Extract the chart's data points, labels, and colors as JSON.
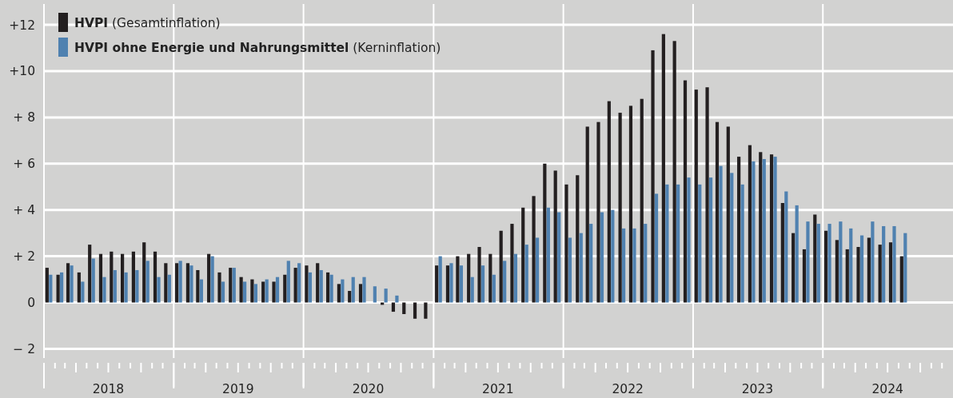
{
  "chart_data": {
    "type": "bar",
    "x": [
      "2018-01-15",
      "2018-02-15",
      "2018-03-15",
      "2018-04-15",
      "2018-05-15",
      "2018-06-15",
      "2018-07-15",
      "2018-08-15",
      "2018-09-15",
      "2018-10-15",
      "2018-11-15",
      "2018-12-15",
      "2019-01-15",
      "2019-02-15",
      "2019-03-15",
      "2019-04-15",
      "2019-05-15",
      "2019-06-15",
      "2019-07-15",
      "2019-08-15",
      "2019-09-15",
      "2019-10-15",
      "2019-11-15",
      "2019-12-15",
      "2020-01-15",
      "2020-02-15",
      "2020-03-15",
      "2020-04-15",
      "2020-05-15",
      "2020-06-15",
      "2020-07-15",
      "2020-08-15",
      "2020-09-15",
      "2020-10-15",
      "2020-11-15",
      "2020-12-15",
      "2021-01-15",
      "2021-02-15",
      "2021-03-15",
      "2021-04-15",
      "2021-05-15",
      "2021-06-15",
      "2021-07-15",
      "2021-08-15",
      "2021-09-15",
      "2021-10-15",
      "2021-11-15",
      "2021-12-15",
      "2022-01-15",
      "2022-02-15",
      "2022-03-15",
      "2022-04-15",
      "2022-05-15",
      "2022-06-15",
      "2022-07-15",
      "2022-08-15",
      "2022-09-15",
      "2022-10-15",
      "2022-11-15",
      "2022-12-15",
      "2023-01-15",
      "2023-02-15",
      "2023-03-15",
      "2023-04-15",
      "2023-05-15",
      "2023-06-15",
      "2023-07-15",
      "2023-08-15",
      "2023-09-15",
      "2023-10-15",
      "2023-11-15",
      "2023-12-15",
      "2024-01-15",
      "2024-02-15",
      "2024-03-15",
      "2024-04-15",
      "2024-05-15",
      "2024-06-15",
      "2024-07-15",
      "2024-08-15"
    ],
    "series": [
      {
        "name": "HVPI (Gesamtinflation)",
        "color": "#231f20",
        "values": [
          1.5,
          1.2,
          1.7,
          1.3,
          2.5,
          2.1,
          2.2,
          2.1,
          2.2,
          2.6,
          2.2,
          1.7,
          1.7,
          1.7,
          1.4,
          2.1,
          1.3,
          1.5,
          1.1,
          1.0,
          0.9,
          0.9,
          1.2,
          1.5,
          1.6,
          1.7,
          1.3,
          0.8,
          0.5,
          0.8,
          0,
          -0.1,
          -0.4,
          -0.5,
          -0.7,
          -0.7,
          1.6,
          1.6,
          2.0,
          2.1,
          2.4,
          2.1,
          3.1,
          3.4,
          4.1,
          4.6,
          6.0,
          5.7,
          5.1,
          5.5,
          7.6,
          7.8,
          8.7,
          8.2,
          8.5,
          8.8,
          10.9,
          11.6,
          11.3,
          9.6,
          9.2,
          9.3,
          7.8,
          7.6,
          6.3,
          6.8,
          6.5,
          6.4,
          4.3,
          3.0,
          2.3,
          3.8,
          3.1,
          2.7,
          2.3,
          2.4,
          2.8,
          2.5,
          2.6,
          2.0
        ]
      },
      {
        "name": "HVPI ohne Energie und Nahrungsmittel (Kerninflation)",
        "color": "#4f81b0",
        "values": [
          1.2,
          1.3,
          1.6,
          0.9,
          1.9,
          1.1,
          1.4,
          1.3,
          1.4,
          1.8,
          1.1,
          1.2,
          1.8,
          1.6,
          1.0,
          2.0,
          0.9,
          1.5,
          0.9,
          0.8,
          1.0,
          1.1,
          1.8,
          1.7,
          1.3,
          1.4,
          1.2,
          1.0,
          1.1,
          1.1,
          0.7,
          0.6,
          0.3,
          0,
          0,
          0,
          2.0,
          1.7,
          1.6,
          1.1,
          1.6,
          1.2,
          1.8,
          2.1,
          2.5,
          2.8,
          4.1,
          3.9,
          2.8,
          3.0,
          3.4,
          3.9,
          4.0,
          3.2,
          3.2,
          3.4,
          4.7,
          5.1,
          5.1,
          5.4,
          5.1,
          5.4,
          5.9,
          5.6,
          5.1,
          6.1,
          6.2,
          6.3,
          4.8,
          4.2,
          3.5,
          3.4,
          3.4,
          3.5,
          3.2,
          2.9,
          3.5,
          3.3,
          3.3,
          3.0
        ]
      }
    ],
    "xlim": [
      "2018-01",
      "2025-01"
    ],
    "xticks": [
      {
        "value": "2018-01",
        "label": null
      },
      {
        "value": "2018-07",
        "label": "2018"
      },
      {
        "value": "2019-01",
        "label": null
      },
      {
        "value": "2019-07",
        "label": "2019"
      },
      {
        "value": "2020-01",
        "label": null
      },
      {
        "value": "2020-07",
        "label": "2020"
      },
      {
        "value": "2021-01",
        "label": null
      },
      {
        "value": "2021-07",
        "label": "2021"
      },
      {
        "value": "2022-01",
        "label": null
      },
      {
        "value": "2022-07",
        "label": "2022"
      },
      {
        "value": "2023-01",
        "label": null
      },
      {
        "value": "2023-07",
        "label": "2023"
      },
      {
        "value": "2024-01",
        "label": null
      },
      {
        "value": "2024-07",
        "label": "2024"
      }
    ],
    "ylim": [
      -2.4,
      12.9
    ],
    "yticks": [
      {
        "value": -2,
        "label": "− 2"
      },
      {
        "value": 0,
        "label": "0"
      },
      {
        "value": 2,
        "label": "+ 2"
      },
      {
        "value": 4,
        "label": "+ 4"
      },
      {
        "value": 6,
        "label": "+ 6"
      },
      {
        "value": 8,
        "label": "+ 8"
      },
      {
        "value": 10,
        "label": "+10"
      },
      {
        "value": 12,
        "label": "+12"
      }
    ],
    "grid": true,
    "legend": "top left"
  }
}
